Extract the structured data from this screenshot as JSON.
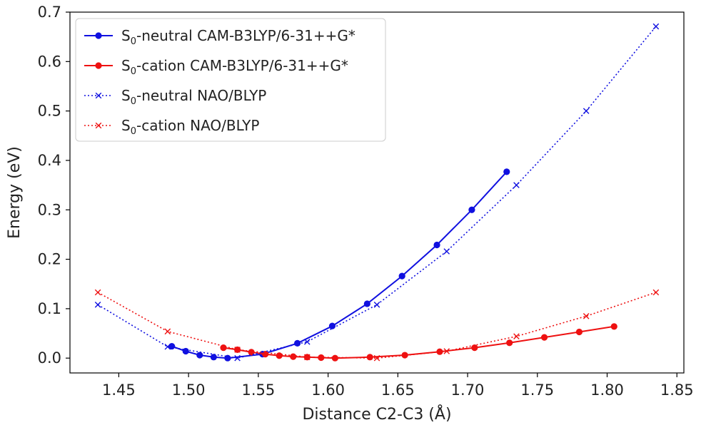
{
  "chart_data": {
    "type": "line",
    "title": "",
    "xlabel": "Distance C2-C3 (Å)",
    "ylabel": "Energy (eV)",
    "xlim": [
      1.415,
      1.855
    ],
    "ylim": [
      -0.03,
      0.7
    ],
    "xticks": [
      "1.45",
      "1.50",
      "1.55",
      "1.60",
      "1.65",
      "1.70",
      "1.75",
      "1.80",
      "1.85"
    ],
    "yticks": [
      "0.0",
      "0.1",
      "0.2",
      "0.3",
      "0.4",
      "0.5",
      "0.6",
      "0.7"
    ],
    "grid": false,
    "legend_position": "top-left",
    "series": [
      {
        "name": "S0-neutral CAM-B3LYP/6-31++G*",
        "legend_prefix": "S",
        "legend_sub": "0",
        "legend_rest": "-neutral CAM-B3LYP/6-31++G*",
        "color": "#1010e0",
        "line": "solid",
        "marker": "circle",
        "x": [
          1.488,
          1.498,
          1.508,
          1.518,
          1.528,
          1.553,
          1.578,
          1.603,
          1.628,
          1.653,
          1.678,
          1.703,
          1.728
        ],
        "y": [
          0.024,
          0.014,
          0.006,
          0.002,
          0.0,
          0.008,
          0.03,
          0.065,
          0.11,
          0.166,
          0.229,
          0.3,
          0.377
        ]
      },
      {
        "name": "S0-cation CAM-B3LYP/6-31++G*",
        "legend_prefix": "S",
        "legend_sub": "0",
        "legend_rest": "-cation CAM-B3LYP/6-31++G*",
        "color": "#ee1111",
        "line": "solid",
        "marker": "circle",
        "x": [
          1.525,
          1.535,
          1.545,
          1.555,
          1.565,
          1.575,
          1.585,
          1.595,
          1.605,
          1.63,
          1.655,
          1.68,
          1.705,
          1.73,
          1.755,
          1.78,
          1.805
        ],
        "y": [
          0.021,
          0.017,
          0.012,
          0.008,
          0.005,
          0.003,
          0.002,
          0.001,
          0.0,
          0.002,
          0.006,
          0.013,
          0.021,
          0.031,
          0.042,
          0.053,
          0.064
        ]
      },
      {
        "name": "S0-neutral NAO/BLYP",
        "legend_prefix": "S",
        "legend_sub": "0",
        "legend_rest": "-neutral NAO/BLYP",
        "color": "#1010e0",
        "line": "dotted",
        "marker": "x",
        "x": [
          1.435,
          1.485,
          1.535,
          1.585,
          1.635,
          1.685,
          1.735,
          1.785,
          1.835
        ],
        "y": [
          0.108,
          0.023,
          0.0,
          0.033,
          0.108,
          0.216,
          0.35,
          0.5,
          0.671
        ]
      },
      {
        "name": "S0-cation NAO/BLYP",
        "legend_prefix": "S",
        "legend_sub": "0",
        "legend_rest": "-cation NAO/BLYP",
        "color": "#ee1111",
        "line": "dotted",
        "marker": "x",
        "x": [
          1.435,
          1.485,
          1.535,
          1.585,
          1.635,
          1.685,
          1.735,
          1.785,
          1.835
        ],
        "y": [
          0.133,
          0.054,
          0.017,
          0.002,
          0.0,
          0.014,
          0.044,
          0.085,
          0.133
        ]
      }
    ]
  }
}
